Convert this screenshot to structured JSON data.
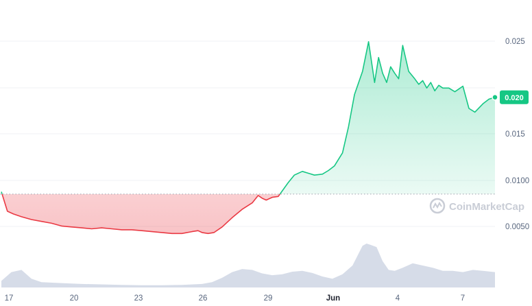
{
  "chart_data": {
    "type": "area",
    "x_ticks": [
      "17",
      "20",
      "23",
      "26",
      "29",
      "Jun",
      "4",
      "7"
    ],
    "y_ticks": [
      "0.0050",
      "0.0100",
      "0.015",
      "0.025"
    ],
    "ylim": [
      0.0032,
      0.0268
    ],
    "baseline": 0.00975,
    "current_price": "0.020",
    "watermark": "CoinMarketCap",
    "colors": {
      "up": "#16c784",
      "down": "#ea3943",
      "badge": "#16c784",
      "volume": "#cfd6e4",
      "grid": "#eff2f5",
      "baseline": "#9aa1ad"
    },
    "grid": true,
    "price_series": {
      "name": "Price",
      "x": [
        0,
        0.3,
        0.6,
        1,
        1.5,
        2,
        2.5,
        3,
        3.5,
        4,
        4.5,
        5,
        5.5,
        6,
        6.5,
        7,
        7.5,
        8,
        8.5,
        9,
        9.5,
        9.8,
        10,
        10.3,
        10.6,
        11,
        11.5,
        12,
        12.5,
        12.8,
        13,
        13.2,
        13.5,
        13.8,
        14,
        14.3,
        14.6,
        15,
        15.3,
        15.6,
        16,
        16.3,
        16.6,
        17,
        17.3,
        17.6,
        18,
        18.3,
        18.6,
        18.8,
        19,
        19.2,
        19.4,
        19.6,
        19.8,
        20,
        20.3,
        20.6,
        20.8,
        21,
        21.2,
        21.4,
        21.6,
        21.8,
        22,
        22.3,
        22.6,
        23,
        23.3,
        23.6,
        24,
        24.3,
        24.6
      ],
      "values": [
        0.01,
        0.0079,
        0.0076,
        0.0073,
        0.007,
        0.0068,
        0.0066,
        0.0063,
        0.0062,
        0.0061,
        0.006,
        0.0061,
        0.006,
        0.0059,
        0.0059,
        0.0058,
        0.0057,
        0.0056,
        0.0055,
        0.0055,
        0.0057,
        0.0058,
        0.0056,
        0.0055,
        0.0056,
        0.0062,
        0.0072,
        0.0081,
        0.0088,
        0.0096,
        0.0093,
        0.0091,
        0.0094,
        0.0095,
        0.0101,
        0.011,
        0.0118,
        0.0122,
        0.012,
        0.0118,
        0.0119,
        0.0123,
        0.0128,
        0.0142,
        0.017,
        0.0205,
        0.023,
        0.0262,
        0.0218,
        0.0245,
        0.0228,
        0.0218,
        0.0235,
        0.0228,
        0.0222,
        0.0258,
        0.023,
        0.0222,
        0.0216,
        0.022,
        0.0212,
        0.0218,
        0.0209,
        0.0215,
        0.0212,
        0.0212,
        0.0208,
        0.0214,
        0.019,
        0.0186,
        0.0195,
        0.02,
        0.0202
      ]
    },
    "volume_series": {
      "name": "Volume",
      "x": [
        0,
        0.5,
        1,
        1.5,
        2,
        3,
        4,
        5,
        6,
        7,
        8,
        9,
        10,
        10.5,
        11,
        11.5,
        12,
        12.5,
        13,
        13.5,
        14,
        14.5,
        15,
        15.5,
        16,
        16.5,
        17,
        17.5,
        18,
        18.2,
        18.4,
        18.7,
        19,
        19.3,
        19.6,
        20,
        20.5,
        21,
        21.5,
        22,
        22.5,
        23,
        23.5,
        24,
        24.6
      ],
      "values": [
        0.15,
        0.35,
        0.4,
        0.2,
        0.12,
        0.1,
        0.08,
        0.07,
        0.06,
        0.05,
        0.05,
        0.06,
        0.08,
        0.12,
        0.22,
        0.35,
        0.42,
        0.4,
        0.32,
        0.28,
        0.3,
        0.36,
        0.38,
        0.33,
        0.25,
        0.2,
        0.3,
        0.5,
        0.95,
        1.0,
        0.97,
        0.92,
        0.6,
        0.4,
        0.38,
        0.45,
        0.55,
        0.5,
        0.45,
        0.38,
        0.38,
        0.35,
        0.4,
        0.38,
        0.35
      ]
    }
  }
}
